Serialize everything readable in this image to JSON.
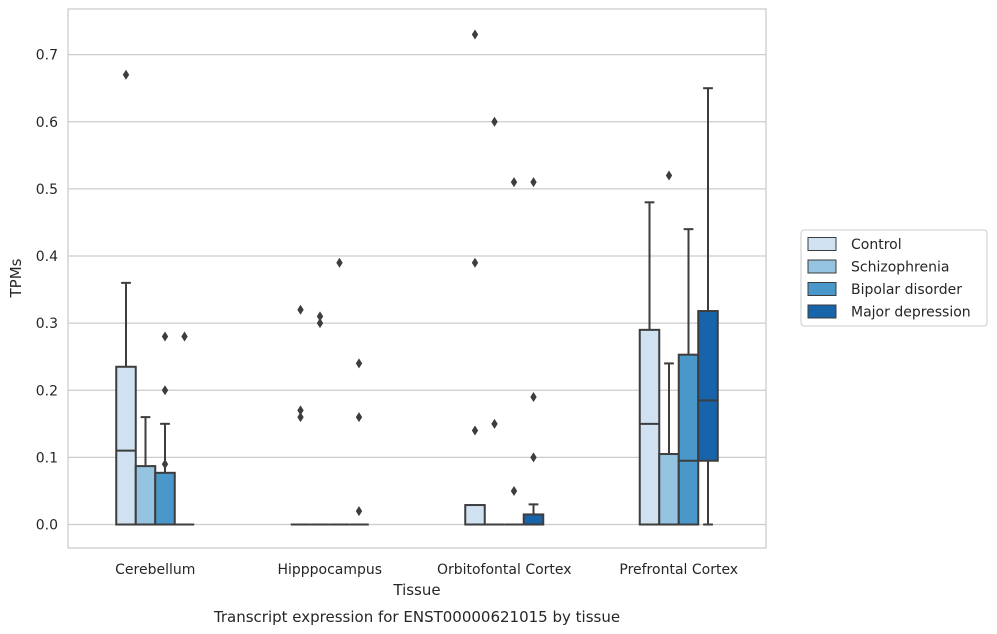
{
  "chart_data": {
    "type": "box",
    "caption": "Transcript expression for ENST00000621015 by tissue",
    "xlabel": "Tissue",
    "ylabel": "TPMs",
    "ylim": [
      -0.035,
      0.768
    ],
    "yticks": [
      "0.0",
      "0.1",
      "0.2",
      "0.3",
      "0.4",
      "0.5",
      "0.6",
      "0.7"
    ],
    "grid": "horizontal",
    "legend_position": "right",
    "categories": [
      "Cerebellum",
      "Hipppocampus",
      "Orbitofontal Cortex",
      "Prefrontal Cortex"
    ],
    "series": [
      {
        "name": "Control",
        "color": "#d0e1f2"
      },
      {
        "name": "Schizophrenia",
        "color": "#94c4df"
      },
      {
        "name": "Bipolar disorder",
        "color": "#4a98c9"
      },
      {
        "name": "Major depression",
        "color": "#1764ab"
      }
    ],
    "boxes": [
      [
        {
          "q1": 0,
          "median": 0.11,
          "q3": 0.235,
          "whislo": 0,
          "whishi": 0.36,
          "fliers": [
            0.67
          ]
        },
        {
          "q1": 0,
          "median": 0,
          "q3": 0.087,
          "whislo": 0,
          "whishi": 0.16,
          "fliers": []
        },
        {
          "q1": 0,
          "median": 0,
          "q3": 0.077,
          "whislo": 0,
          "whishi": 0.15,
          "fliers": [
            0.28,
            0.2,
            0.09
          ]
        },
        {
          "q1": 0,
          "median": 0,
          "q3": 0,
          "whislo": 0,
          "whishi": 0,
          "fliers": [
            0.28
          ]
        }
      ],
      [
        {
          "q1": 0,
          "median": 0,
          "q3": 0,
          "whislo": 0,
          "whishi": 0,
          "fliers": [
            0.32,
            0.17,
            0.16
          ]
        },
        {
          "q1": 0,
          "median": 0,
          "q3": 0,
          "whislo": 0,
          "whishi": 0,
          "fliers": [
            0.31,
            0.3
          ]
        },
        {
          "q1": 0,
          "median": 0,
          "q3": 0,
          "whislo": 0,
          "whishi": 0,
          "fliers": [
            0.39
          ]
        },
        {
          "q1": 0,
          "median": 0,
          "q3": 0,
          "whislo": 0,
          "whishi": 0,
          "fliers": [
            0.24,
            0.16,
            0.02
          ]
        }
      ],
      [
        {
          "q1": 0,
          "median": 0,
          "q3": 0.029,
          "whislo": 0,
          "whishi": 0.029,
          "fliers": [
            0.73,
            0.39,
            0.14
          ]
        },
        {
          "q1": 0,
          "median": 0,
          "q3": 0,
          "whislo": 0,
          "whishi": 0,
          "fliers": [
            0.6,
            0.15
          ]
        },
        {
          "q1": 0,
          "median": 0,
          "q3": 0,
          "whislo": 0,
          "whishi": 0,
          "fliers": [
            0.51,
            0.05
          ]
        },
        {
          "q1": 0,
          "median": 0,
          "q3": 0.015,
          "whislo": 0,
          "whishi": 0.03,
          "fliers": [
            0.51,
            0.19,
            0.1
          ]
        }
      ],
      [
        {
          "q1": 0,
          "median": 0.15,
          "q3": 0.29,
          "whislo": 0,
          "whishi": 0.48,
          "fliers": []
        },
        {
          "q1": 0,
          "median": 0,
          "q3": 0.105,
          "whislo": 0,
          "whishi": 0.24,
          "fliers": [
            0.52
          ]
        },
        {
          "q1": 0,
          "median": 0.095,
          "q3": 0.253,
          "whislo": 0,
          "whishi": 0.44,
          "fliers": []
        },
        {
          "q1": 0.095,
          "median": 0.185,
          "q3": 0.318,
          "whislo": 0,
          "whishi": 0.65,
          "fliers": []
        }
      ]
    ]
  }
}
